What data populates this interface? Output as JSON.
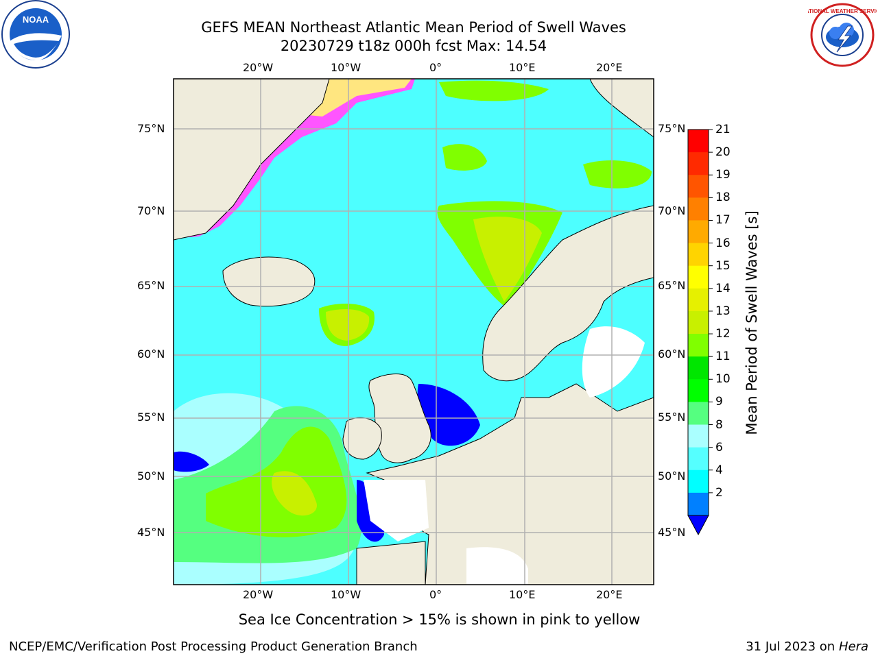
{
  "header": {
    "title_line1": "GEFS MEAN Northeast Atlantic Mean Period of Swell Waves",
    "title_line2": "20230729 t18z 000h fcst   Max: 14.54"
  },
  "logos": {
    "left": "NOAA",
    "right": "NATIONAL WEATHER SERVICE"
  },
  "map": {
    "lon_labels": [
      "20°W",
      "10°W",
      "0°",
      "10°E",
      "20°E"
    ],
    "lat_labels": [
      "75°N",
      "70°N",
      "65°N",
      "60°N",
      "55°N",
      "50°N",
      "45°N"
    ],
    "colors": {
      "ocean_base": "#4dffff",
      "land": "#efecdc",
      "grid": "#b0b0b0"
    }
  },
  "colorbar": {
    "label": "Mean Period of Swell Waves [s]",
    "ticks": [
      "21",
      "20",
      "19",
      "18",
      "17",
      "16",
      "15",
      "14",
      "13",
      "12",
      "11",
      "10",
      "9",
      "8",
      "6",
      "4",
      "2"
    ],
    "colors": [
      "#ff0000",
      "#ff2a00",
      "#ff5500",
      "#ff8000",
      "#ffaa00",
      "#ffd400",
      "#ffff00",
      "#e6f000",
      "#c8f000",
      "#80ff00",
      "#00e600",
      "#00ff00",
      "#55ff80",
      "#aaffff",
      "#55ffff",
      "#00ffff",
      "#0080ff"
    ],
    "under_color": "#0000ff"
  },
  "note": "Sea Ice Concentration > 15% is shown in pink to yellow",
  "footer": {
    "left": "NCEP/EMC/Verification Post Processing Product Generation Branch",
    "date": "31 Jul 2023 on ",
    "machine": "Hera"
  }
}
